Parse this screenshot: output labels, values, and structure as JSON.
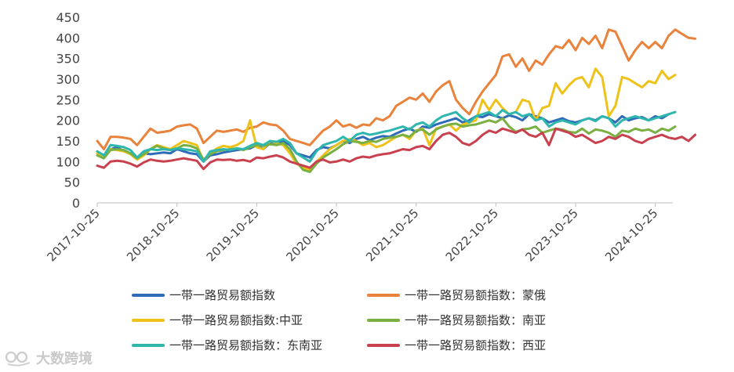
{
  "chart_data": {
    "type": "line",
    "ylim": [
      0,
      450
    ],
    "yticks": [
      0,
      50,
      100,
      150,
      200,
      250,
      300,
      350,
      400,
      450
    ],
    "xticks": [
      "2017-10-25",
      "2018-10-25",
      "2019-10-25",
      "2020-10-25",
      "2021-10-25",
      "2022-10-25",
      "2023-10-25",
      "2024-10-25"
    ],
    "x_start": "2017-10-25",
    "x_step": "1 month",
    "grid": false,
    "legend_position": "bottom",
    "series": [
      {
        "name": "一带一路贸易额指数",
        "color": "#2E6BB8",
        "values": [
          120,
          110,
          130,
          135,
          125,
          120,
          110,
          120,
          118,
          120,
          122,
          120,
          130,
          125,
          120,
          118,
          100,
          115,
          118,
          122,
          125,
          128,
          130,
          132,
          140,
          130,
          145,
          142,
          150,
          140,
          120,
          115,
          110,
          128,
          135,
          132,
          140,
          150,
          145,
          155,
          160,
          152,
          158,
          162,
          160,
          168,
          175,
          180,
          172,
          185,
          182,
          190,
          195,
          200,
          205,
          195,
          200,
          210,
          208,
          215,
          210,
          205,
          212,
          208,
          200,
          215,
          210,
          205,
          195,
          200,
          205,
          198,
          195,
          200,
          205,
          200,
          210,
          205,
          195,
          210,
          200,
          205,
          208,
          200,
          210,
          205,
          215
        ]
      },
      {
        "name": "一带一路贸易额指数：蒙俄",
        "color": "#E9823A",
        "values": [
          150,
          130,
          160,
          160,
          158,
          155,
          140,
          160,
          180,
          170,
          172,
          175,
          185,
          188,
          190,
          180,
          145,
          160,
          175,
          172,
          175,
          178,
          172,
          182,
          185,
          195,
          190,
          188,
          175,
          155,
          150,
          145,
          140,
          158,
          175,
          185,
          200,
          185,
          190,
          182,
          190,
          188,
          205,
          200,
          210,
          235,
          245,
          255,
          250,
          265,
          245,
          270,
          285,
          295,
          250,
          230,
          215,
          245,
          270,
          290,
          310,
          355,
          360,
          330,
          350,
          320,
          345,
          335,
          360,
          380,
          375,
          395,
          370,
          400,
          385,
          405,
          375,
          420,
          415,
          380,
          345,
          370,
          390,
          375,
          390,
          375,
          405,
          420,
          410,
          400,
          398
        ]
      },
      {
        "name": "一带一路贸易额指数:中亚",
        "color": "#EFC219",
        "values": [
          120,
          110,
          130,
          128,
          125,
          118,
          105,
          115,
          130,
          140,
          135,
          130,
          140,
          150,
          145,
          140,
          100,
          120,
          132,
          138,
          135,
          140,
          150,
          200,
          135,
          130,
          150,
          145,
          140,
          120,
          95,
          85,
          80,
          100,
          115,
          130,
          140,
          150,
          155,
          150,
          140,
          145,
          135,
          140,
          150,
          160,
          165,
          155,
          175,
          180,
          140,
          180,
          185,
          190,
          175,
          190,
          195,
          200,
          250,
          225,
          250,
          230,
          215,
          220,
          250,
          245,
          200,
          230,
          235,
          290,
          265,
          285,
          300,
          305,
          280,
          325,
          305,
          210,
          235,
          305,
          300,
          290,
          280,
          295,
          290,
          320,
          300,
          310
        ]
      },
      {
        "name": "一带一路贸易额指数：南亚",
        "color": "#79B041",
        "values": [
          115,
          108,
          128,
          130,
          128,
          120,
          108,
          118,
          130,
          138,
          132,
          128,
          132,
          140,
          138,
          132,
          105,
          118,
          125,
          128,
          130,
          132,
          128,
          135,
          140,
          138,
          142,
          140,
          145,
          130,
          100,
          80,
          75,
          95,
          110,
          120,
          130,
          142,
          150,
          148,
          145,
          150,
          148,
          155,
          158,
          160,
          165,
          160,
          175,
          178,
          165,
          178,
          185,
          190,
          192,
          185,
          188,
          190,
          195,
          200,
          195,
          205,
          185,
          172,
          178,
          180,
          185,
          170,
          175,
          180,
          178,
          172,
          170,
          180,
          168,
          178,
          175,
          170,
          160,
          175,
          172,
          180,
          175,
          178,
          170,
          180,
          175,
          185
        ]
      },
      {
        "name": "一带一路贸易额指数：东南亚",
        "color": "#2FB7AE",
        "values": [
          125,
          115,
          140,
          138,
          135,
          128,
          110,
          125,
          130,
          128,
          130,
          128,
          132,
          130,
          128,
          125,
          100,
          125,
          128,
          130,
          128,
          132,
          130,
          138,
          145,
          140,
          150,
          148,
          155,
          145,
          120,
          110,
          100,
          125,
          140,
          145,
          150,
          160,
          150,
          165,
          170,
          165,
          168,
          172,
          175,
          180,
          185,
          178,
          190,
          195,
          185,
          200,
          210,
          215,
          220,
          205,
          195,
          210,
          215,
          220,
          210,
          225,
          215,
          220,
          210,
          215,
          200,
          205,
          185,
          195,
          200,
          195,
          190,
          200,
          205,
          198,
          210,
          205,
          185,
          200,
          205,
          210,
          205,
          200,
          205,
          210,
          215,
          220
        ]
      },
      {
        "name": "一带一路贸易额指数：西亚",
        "color": "#C9404E",
        "values": [
          90,
          85,
          100,
          102,
          100,
          95,
          88,
          98,
          105,
          102,
          100,
          102,
          105,
          108,
          105,
          102,
          82,
          98,
          105,
          104,
          105,
          102,
          104,
          100,
          110,
          108,
          112,
          115,
          110,
          100,
          95,
          90,
          85,
          100,
          105,
          98,
          100,
          105,
          100,
          108,
          112,
          110,
          115,
          118,
          120,
          125,
          130,
          128,
          135,
          138,
          130,
          150,
          165,
          170,
          160,
          145,
          140,
          150,
          165,
          175,
          170,
          180,
          175,
          170,
          178,
          165,
          160,
          170,
          140,
          180,
          175,
          170,
          160,
          165,
          155,
          145,
          150,
          160,
          155,
          165,
          160,
          150,
          145,
          155,
          160,
          165,
          158,
          155,
          160,
          150,
          165
        ]
      }
    ]
  },
  "watermark": {
    "text": "大数跨境"
  }
}
